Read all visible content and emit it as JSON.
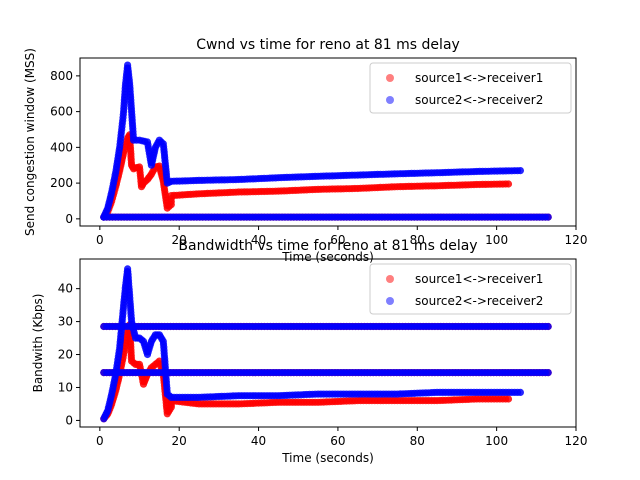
{
  "chart_data": [
    {
      "type": "scatter",
      "title": "Cwnd vs time for reno at 81 ms delay",
      "xlabel": "Time (seconds)",
      "ylabel": "Send congestion window (MSS)",
      "xlim": [
        -5,
        120
      ],
      "ylim": [
        -40,
        900
      ],
      "xticks": [
        0,
        20,
        40,
        60,
        80,
        100,
        120
      ],
      "yticks": [
        0,
        200,
        400,
        600,
        800
      ],
      "legend_position": "top-right",
      "series": [
        {
          "name": "source1<->receiver1",
          "color": "#ff0000",
          "points": [
            [
              1,
              10
            ],
            [
              2,
              40
            ],
            [
              3,
              100
            ],
            [
              4,
              180
            ],
            [
              5,
              270
            ],
            [
              6,
              370
            ],
            [
              7,
              450
            ],
            [
              7.5,
              470
            ],
            [
              8,
              300
            ],
            [
              8.5,
              280
            ],
            [
              9,
              285
            ],
            [
              10,
              290
            ],
            [
              10.5,
              180
            ],
            [
              11,
              200
            ],
            [
              12,
              220
            ],
            [
              13,
              250
            ],
            [
              14,
              290
            ],
            [
              15,
              295
            ],
            [
              16,
              210
            ],
            [
              17,
              60
            ],
            [
              18,
              80
            ],
            [
              18,
              130
            ],
            [
              25,
              140
            ],
            [
              35,
              150
            ],
            [
              45,
              155
            ],
            [
              55,
              165
            ],
            [
              65,
              170
            ],
            [
              75,
              180
            ],
            [
              85,
              185
            ],
            [
              95,
              192
            ],
            [
              103,
              195
            ],
            [
              1,
              10
            ],
            [
              20,
              10
            ],
            [
              40,
              10
            ],
            [
              60,
              10
            ],
            [
              80,
              10
            ],
            [
              100,
              10
            ],
            [
              113,
              10
            ]
          ]
        },
        {
          "name": "source2<->receiver2",
          "color": "#0000ff",
          "points": [
            [
              1,
              10
            ],
            [
              2,
              60
            ],
            [
              3,
              150
            ],
            [
              4,
              260
            ],
            [
              5,
              400
            ],
            [
              6,
              600
            ],
            [
              6.5,
              760
            ],
            [
              7,
              860
            ],
            [
              7.5,
              760
            ],
            [
              8,
              600
            ],
            [
              8.5,
              440
            ],
            [
              10,
              440
            ],
            [
              12,
              430
            ],
            [
              13,
              300
            ],
            [
              14,
              400
            ],
            [
              15,
              440
            ],
            [
              16,
              420
            ],
            [
              17,
              200
            ],
            [
              18,
              210
            ],
            [
              25,
              215
            ],
            [
              35,
              220
            ],
            [
              45,
              230
            ],
            [
              55,
              238
            ],
            [
              65,
              245
            ],
            [
              75,
              252
            ],
            [
              85,
              258
            ],
            [
              95,
              265
            ],
            [
              106,
              270
            ],
            [
              1,
              10
            ],
            [
              20,
              10
            ],
            [
              40,
              10
            ],
            [
              60,
              10
            ],
            [
              80,
              10
            ],
            [
              100,
              10
            ],
            [
              113,
              10
            ]
          ]
        }
      ]
    },
    {
      "type": "scatter",
      "title": "Bandwidth vs time for reno at 81 ms delay",
      "xlabel": "Time (seconds)",
      "ylabel": "Bandwith (Kbps)",
      "xlim": [
        -5,
        120
      ],
      "ylim": [
        -2,
        49
      ],
      "xticks": [
        0,
        20,
        40,
        60,
        80,
        100,
        120
      ],
      "yticks": [
        0,
        10,
        20,
        30,
        40
      ],
      "legend_position": "top-right",
      "series": [
        {
          "name": "source1<->receiver1",
          "color": "#ff0000",
          "points": [
            [
              1,
              0.5
            ],
            [
              2,
              2
            ],
            [
              3,
              5
            ],
            [
              4,
              9
            ],
            [
              5,
              14
            ],
            [
              6,
              20
            ],
            [
              7,
              27
            ],
            [
              7.5,
              29
            ],
            [
              8,
              18
            ],
            [
              9,
              17
            ],
            [
              10,
              17
            ],
            [
              11,
              11
            ],
            [
              12,
              14
            ],
            [
              13,
              16
            ],
            [
              14,
              17
            ],
            [
              15,
              18
            ],
            [
              16,
              14
            ],
            [
              17,
              2
            ],
            [
              18,
              4
            ],
            [
              18,
              6
            ],
            [
              25,
              5
            ],
            [
              35,
              5
            ],
            [
              45,
              5.5
            ],
            [
              55,
              5.5
            ],
            [
              65,
              6
            ],
            [
              75,
              6
            ],
            [
              85,
              6
            ],
            [
              95,
              6.5
            ],
            [
              103,
              6.5
            ],
            [
              1,
              14.5
            ],
            [
              20,
              14.5
            ],
            [
              40,
              14.5
            ],
            [
              60,
              14.5
            ],
            [
              80,
              14.5
            ],
            [
              100,
              14.5
            ],
            [
              113,
              14.5
            ],
            [
              1,
              28.5
            ],
            [
              20,
              28.5
            ],
            [
              40,
              28.5
            ],
            [
              60,
              28.5
            ],
            [
              80,
              28.5
            ],
            [
              100,
              28.5
            ],
            [
              113,
              28.5
            ]
          ]
        },
        {
          "name": "source2<->receiver2",
          "color": "#0000ff",
          "points": [
            [
              1,
              0.5
            ],
            [
              2,
              3
            ],
            [
              3,
              8
            ],
            [
              4,
              14
            ],
            [
              5,
              22
            ],
            [
              6,
              35
            ],
            [
              6.5,
              41
            ],
            [
              7,
              46
            ],
            [
              7.5,
              38
            ],
            [
              8,
              30
            ],
            [
              9,
              25
            ],
            [
              10,
              25
            ],
            [
              11,
              24
            ],
            [
              12,
              20
            ],
            [
              13,
              24
            ],
            [
              14,
              26
            ],
            [
              15,
              26
            ],
            [
              16,
              24
            ],
            [
              17,
              8
            ],
            [
              18,
              7
            ],
            [
              25,
              7
            ],
            [
              35,
              7.5
            ],
            [
              45,
              7.5
            ],
            [
              55,
              8
            ],
            [
              65,
              8
            ],
            [
              75,
              8
            ],
            [
              85,
              8.5
            ],
            [
              95,
              8.5
            ],
            [
              106,
              8.5
            ],
            [
              1,
              14.5
            ],
            [
              20,
              14.5
            ],
            [
              40,
              14.5
            ],
            [
              60,
              14.5
            ],
            [
              80,
              14.5
            ],
            [
              100,
              14.5
            ],
            [
              113,
              14.5
            ],
            [
              1,
              28.5
            ],
            [
              20,
              28.5
            ],
            [
              40,
              28.5
            ],
            [
              60,
              28.5
            ],
            [
              80,
              28.5
            ],
            [
              100,
              28.5
            ],
            [
              113,
              28.5
            ]
          ]
        }
      ]
    }
  ]
}
